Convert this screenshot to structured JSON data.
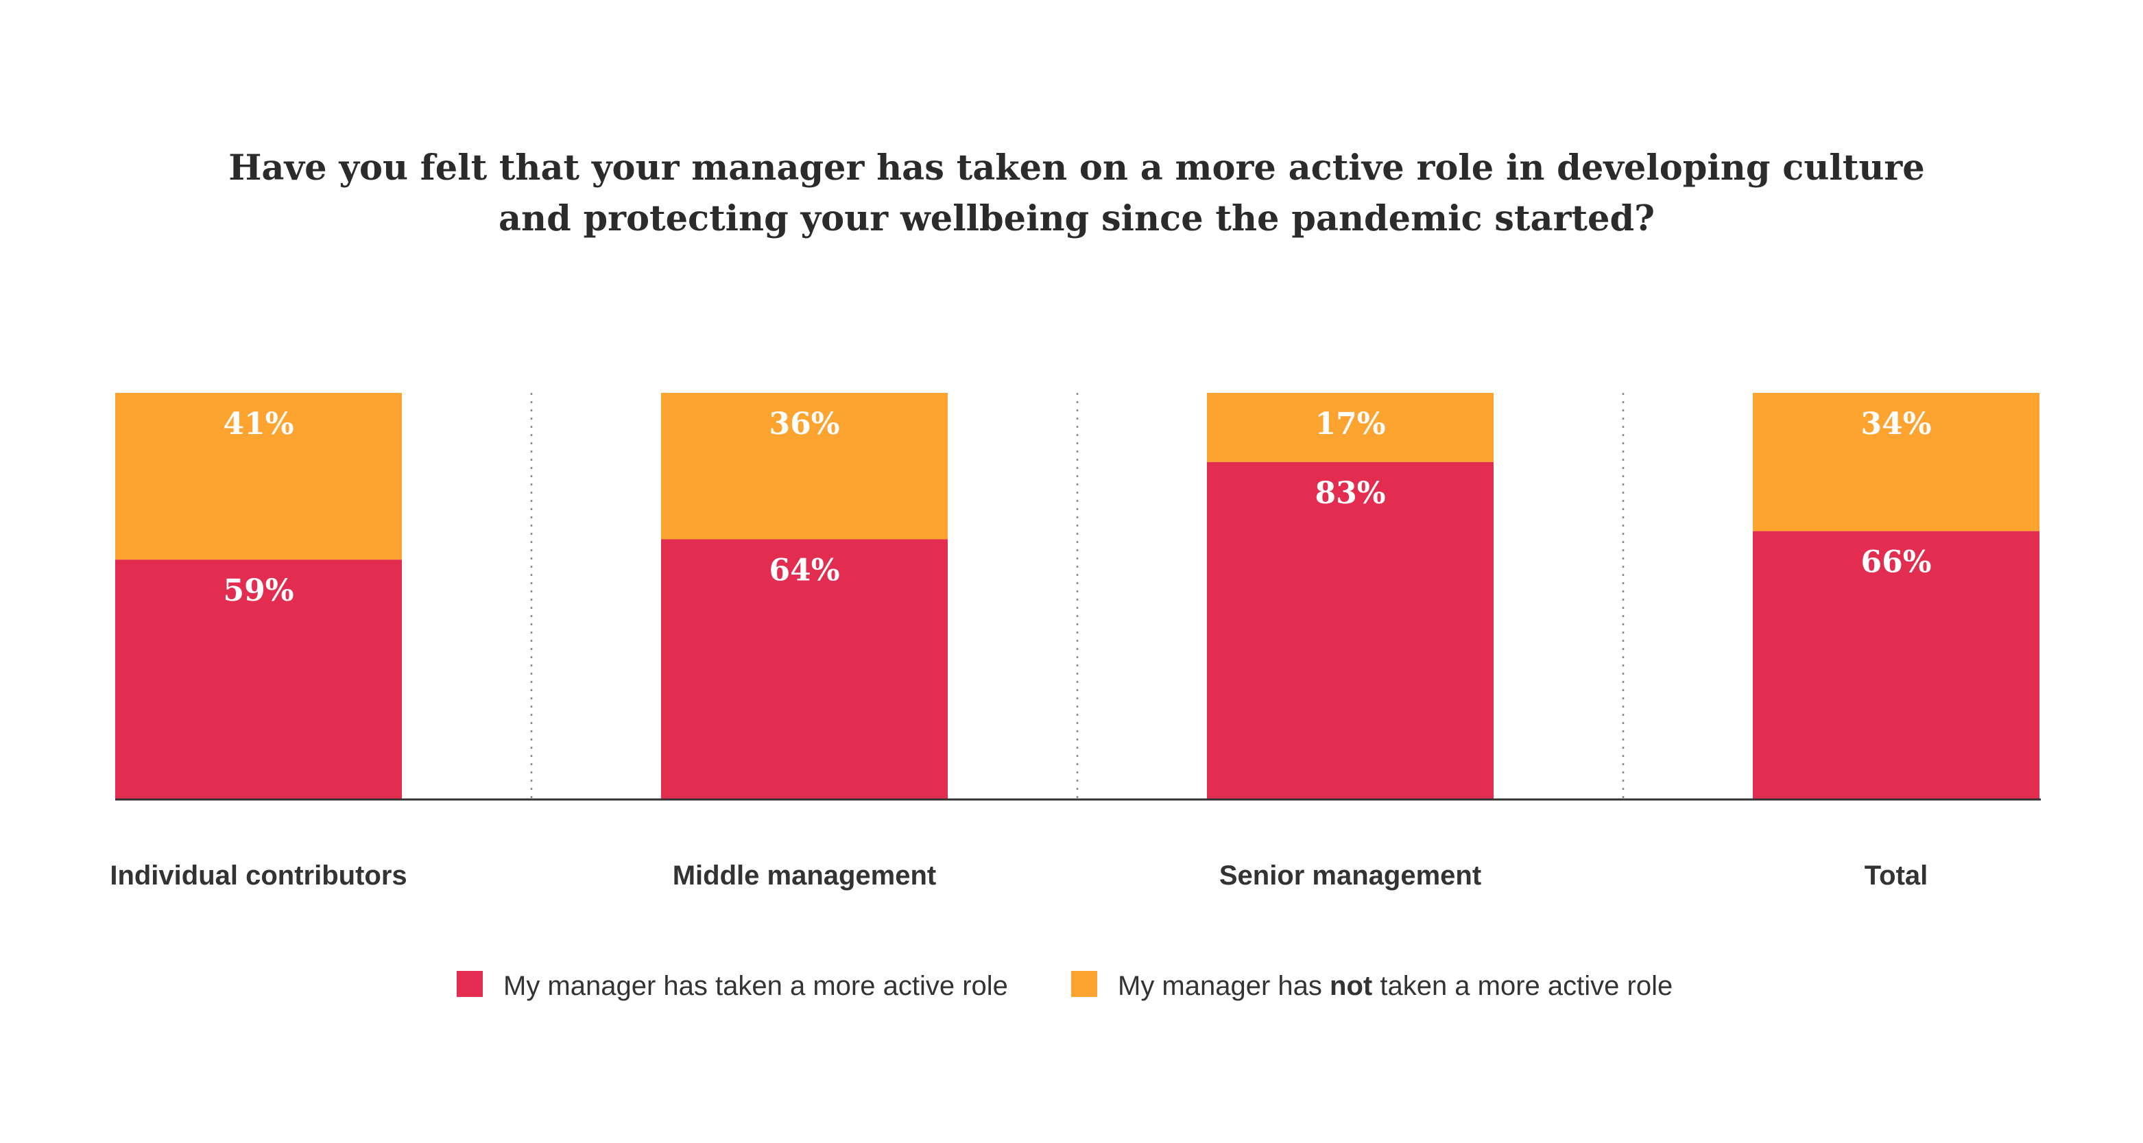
{
  "chart_data": {
    "type": "bar",
    "stacked": true,
    "title_lines": [
      "Have you felt that your manager has taken on a more active role in developing culture",
      "and protecting your wellbeing since the pandemic started?"
    ],
    "categories": [
      "Individual contributors",
      "Middle management",
      "Senior management",
      "Total"
    ],
    "series": [
      {
        "name": "My manager has taken a more active role",
        "values": [
          59,
          64,
          83,
          66
        ],
        "labels": [
          "59%",
          "64%",
          "83%",
          "66%"
        ],
        "color": "#e32d50"
      },
      {
        "name": "My manager has not taken a more active role",
        "values": [
          41,
          36,
          17,
          34
        ],
        "labels": [
          "41%",
          "36%",
          "17%",
          "34%"
        ],
        "color": "#fca330"
      }
    ],
    "legend": [
      {
        "before": "My manager has taken a more active role",
        "strong": "",
        "after": ""
      },
      {
        "before": "My manager has ",
        "strong": "not",
        "after": " taken a more active role"
      }
    ],
    "ylim": [
      0,
      100
    ],
    "xlabel": "",
    "ylabel": ""
  }
}
